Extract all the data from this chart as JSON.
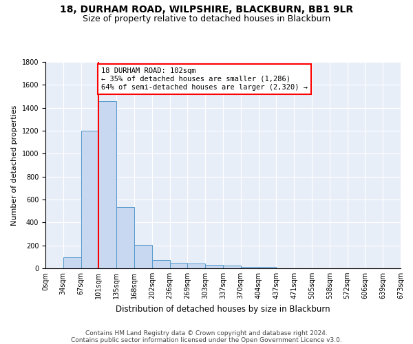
{
  "title1": "18, DURHAM ROAD, WILPSHIRE, BLACKBURN, BB1 9LR",
  "title2": "Size of property relative to detached houses in Blackburn",
  "xlabel": "Distribution of detached houses by size in Blackburn",
  "ylabel": "Number of detached properties",
  "bar_values": [
    0,
    95,
    1200,
    1460,
    535,
    205,
    70,
    50,
    45,
    30,
    25,
    15,
    15,
    0,
    0,
    0,
    0,
    0,
    0,
    0
  ],
  "bin_labels": [
    "0sqm",
    "34sqm",
    "67sqm",
    "101sqm",
    "135sqm",
    "168sqm",
    "202sqm",
    "236sqm",
    "269sqm",
    "303sqm",
    "337sqm",
    "370sqm",
    "404sqm",
    "437sqm",
    "471sqm",
    "505sqm",
    "538sqm",
    "572sqm",
    "606sqm",
    "639sqm",
    "673sqm"
  ],
  "bar_color": "#c8d8f0",
  "bar_edge_color": "#5599cc",
  "annotation_text": "18 DURHAM ROAD: 102sqm\n← 35% of detached houses are smaller (1,286)\n64% of semi-detached houses are larger (2,320) →",
  "annotation_box_color": "white",
  "annotation_border_color": "red",
  "vline_color": "red",
  "vline_bin": 2.5,
  "ylim": [
    0,
    1800
  ],
  "yticks": [
    0,
    200,
    400,
    600,
    800,
    1000,
    1200,
    1400,
    1600,
    1800
  ],
  "background_color": "#e8eef8",
  "footer1": "Contains HM Land Registry data © Crown copyright and database right 2024.",
  "footer2": "Contains public sector information licensed under the Open Government Licence v3.0.",
  "title1_fontsize": 10,
  "title2_fontsize": 9,
  "xlabel_fontsize": 8.5,
  "ylabel_fontsize": 8,
  "tick_fontsize": 7,
  "annot_fontsize": 7.5,
  "footer_fontsize": 6.5
}
